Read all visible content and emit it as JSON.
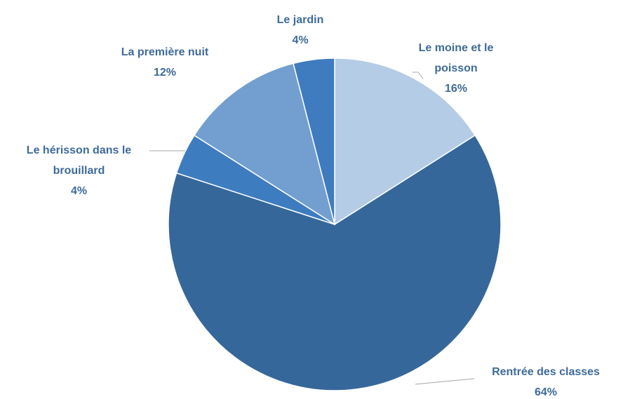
{
  "chart_data": {
    "type": "pie",
    "categories": [
      "Le moine et le poisson",
      "Rentrée des classes",
      "Le hérisson dans le brouillard",
      "La première nuit",
      "Le jardin"
    ],
    "values": [
      16,
      64,
      4,
      12,
      4
    ],
    "value_labels": [
      "16%",
      "64%",
      "4%",
      "12%",
      "4%"
    ],
    "colors": [
      "#b4cce6",
      "#35679a",
      "#3e7cc0",
      "#729fd0",
      "#3f7bbf"
    ]
  }
}
